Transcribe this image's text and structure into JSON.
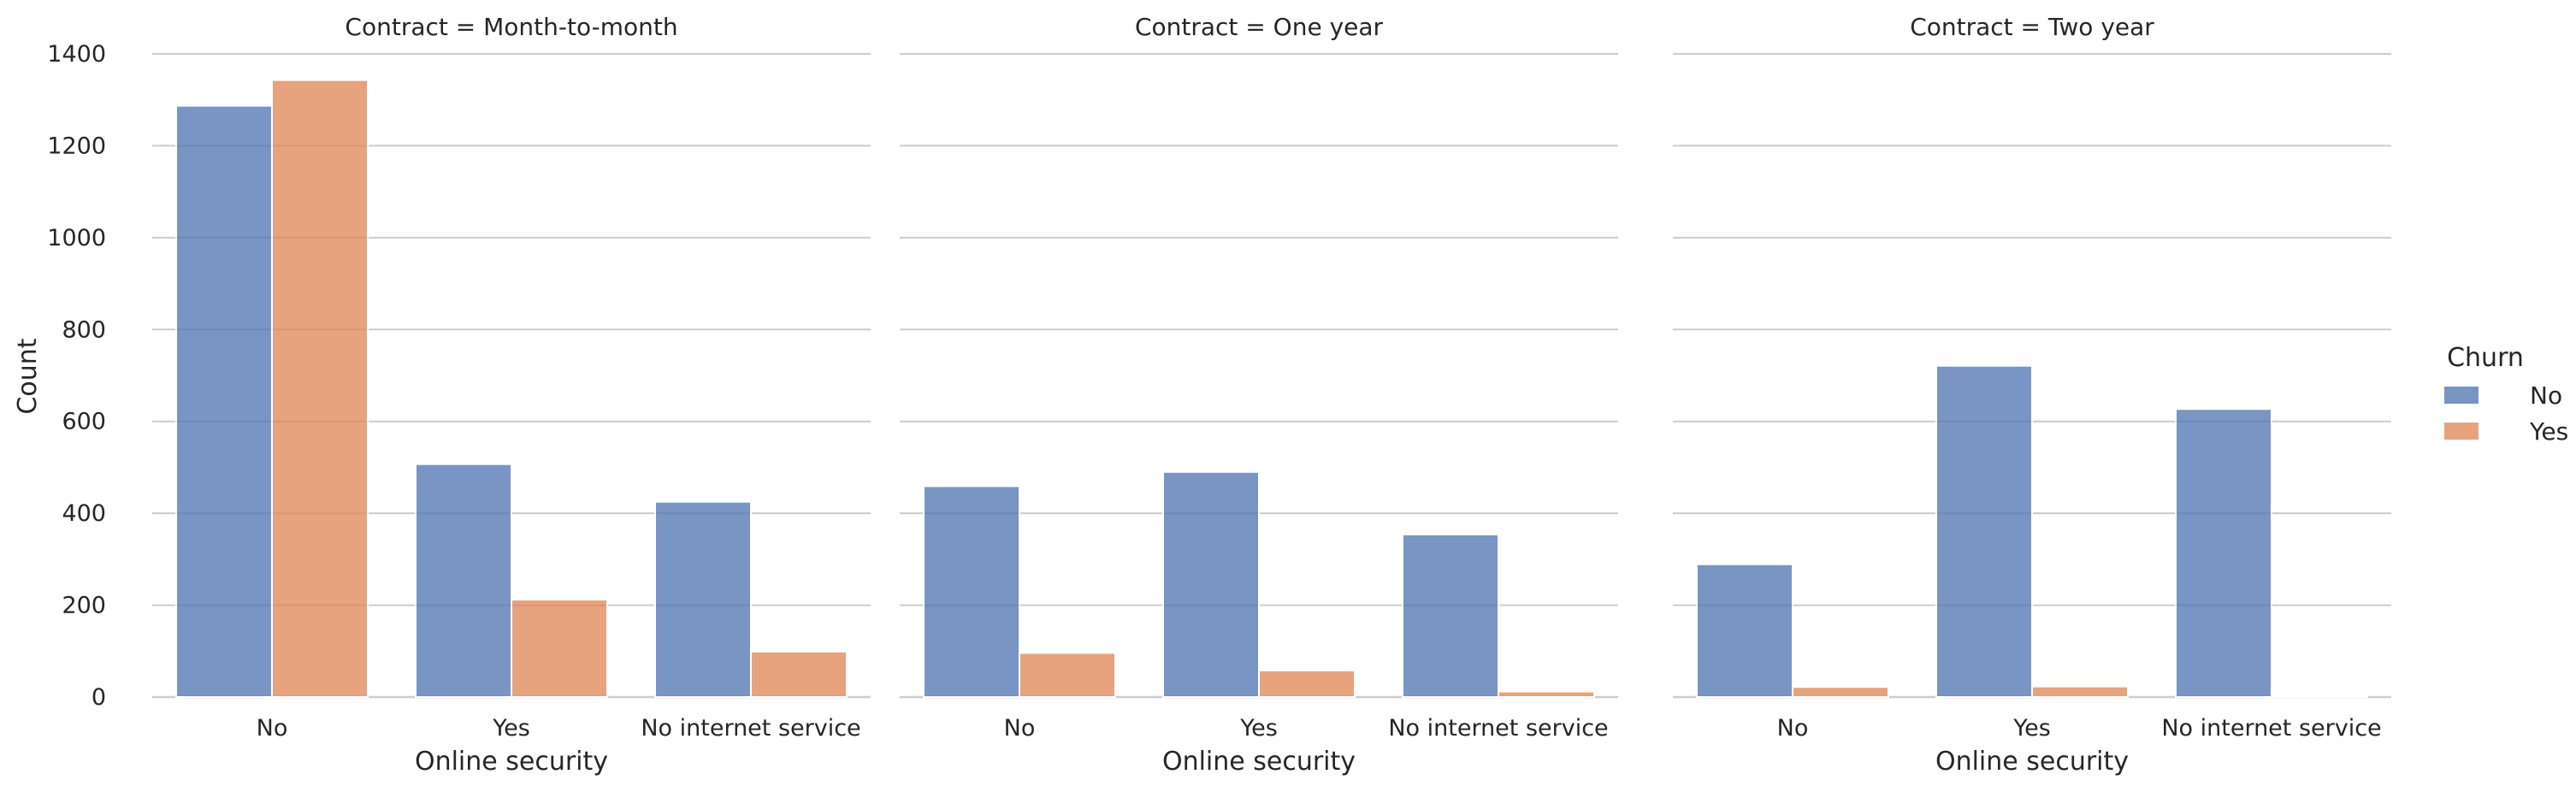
{
  "chart_data": {
    "type": "bar",
    "facet_variable": "Contract",
    "panels": [
      {
        "title": "Contract = Month-to-month",
        "categories": [
          "No",
          "Yes",
          "No internet service"
        ],
        "series": [
          {
            "name": "No",
            "values": [
              1287,
              507,
              425
            ]
          },
          {
            "name": "Yes",
            "values": [
              1343,
              212,
              99
            ]
          }
        ]
      },
      {
        "title": "Contract = One year",
        "categories": [
          "No",
          "Yes",
          "No internet service"
        ],
        "series": [
          {
            "name": "No",
            "values": [
              459,
              490,
              354
            ]
          },
          {
            "name": "Yes",
            "values": [
              96,
              58,
              12
            ]
          }
        ]
      },
      {
        "title": "Contract = Two year",
        "categories": [
          "No",
          "Yes",
          "No internet service"
        ],
        "series": [
          {
            "name": "No",
            "values": [
              289,
              721,
              627
            ]
          },
          {
            "name": "Yes",
            "values": [
              22,
              23,
              3
            ]
          }
        ]
      }
    ],
    "xlabel": "Online security",
    "ylabel": "Count",
    "ylim": [
      0,
      1400
    ],
    "yticks": [
      0,
      200,
      400,
      600,
      800,
      1000,
      1200,
      1400
    ],
    "grid": "horizontal",
    "legend": {
      "title": "Churn",
      "position": "right",
      "entries": [
        "No",
        "Yes"
      ]
    },
    "colors": {
      "No": "#4c72b0",
      "Yes": "#dd8452"
    }
  }
}
